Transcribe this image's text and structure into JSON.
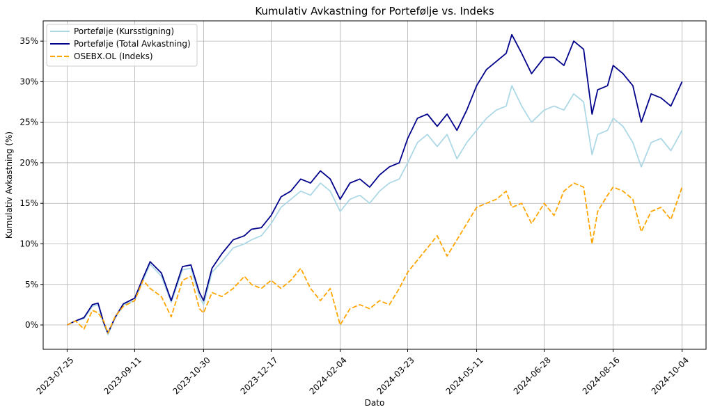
{
  "chart_data": {
    "type": "line",
    "title": "Kumulativ Avkastning for Portefølje vs. Indeks",
    "xlabel": "Dato",
    "ylabel": "Kumulativ Avkastning (%)",
    "ylim": [
      -3,
      37.5
    ],
    "xlim": [
      "2023-07-08",
      "2024-10-21"
    ],
    "x_ticks": [
      "2023-07-25",
      "2023-09-11",
      "2023-10-30",
      "2023-12-17",
      "2024-02-04",
      "2024-03-23",
      "2024-05-11",
      "2024-06-28",
      "2024-08-16",
      "2024-10-04"
    ],
    "y_ticks": [
      0,
      5,
      10,
      15,
      20,
      25,
      30,
      35
    ],
    "y_tick_labels": [
      "0%",
      "5%",
      "10%",
      "15%",
      "20%",
      "25%",
      "30%",
      "35%"
    ],
    "grid": true,
    "legend_position": "top-left",
    "series": [
      {
        "name": "Portefølje (Kursstigning)",
        "color": "#add8e6",
        "style": "solid",
        "points": [
          [
            "2023-07-25",
            0
          ],
          [
            "2023-07-31",
            0.5
          ],
          [
            "2023-08-06",
            0.8
          ],
          [
            "2023-08-12",
            2.3
          ],
          [
            "2023-08-16",
            2.5
          ],
          [
            "2023-08-20",
            0.2
          ],
          [
            "2023-08-23",
            -1.2
          ],
          [
            "2023-08-28",
            0.8
          ],
          [
            "2023-09-03",
            2.5
          ],
          [
            "2023-09-11",
            3.0
          ],
          [
            "2023-09-17",
            5.5
          ],
          [
            "2023-09-22",
            7.5
          ],
          [
            "2023-09-30",
            6.0
          ],
          [
            "2023-10-07",
            2.8
          ],
          [
            "2023-10-15",
            6.8
          ],
          [
            "2023-10-21",
            7.0
          ],
          [
            "2023-10-27",
            3.5
          ],
          [
            "2023-10-30",
            2.5
          ],
          [
            "2023-11-05",
            6.5
          ],
          [
            "2023-11-12",
            7.8
          ],
          [
            "2023-11-20",
            9.5
          ],
          [
            "2023-11-28",
            10.0
          ],
          [
            "2023-12-03",
            10.5
          ],
          [
            "2023-12-10",
            11.0
          ],
          [
            "2023-12-17",
            12.5
          ],
          [
            "2023-12-24",
            14.5
          ],
          [
            "2023-12-31",
            15.5
          ],
          [
            "2024-01-07",
            16.5
          ],
          [
            "2024-01-14",
            16.0
          ],
          [
            "2024-01-21",
            17.5
          ],
          [
            "2024-01-28",
            16.5
          ],
          [
            "2024-02-04",
            14.0
          ],
          [
            "2024-02-11",
            15.5
          ],
          [
            "2024-02-18",
            16.0
          ],
          [
            "2024-02-25",
            15.0
          ],
          [
            "2024-03-03",
            16.5
          ],
          [
            "2024-03-10",
            17.5
          ],
          [
            "2024-03-17",
            18.0
          ],
          [
            "2024-03-23",
            20.0
          ],
          [
            "2024-03-30",
            22.5
          ],
          [
            "2024-04-06",
            23.5
          ],
          [
            "2024-04-13",
            22.0
          ],
          [
            "2024-04-20",
            23.5
          ],
          [
            "2024-04-27",
            20.5
          ],
          [
            "2024-05-04",
            22.5
          ],
          [
            "2024-05-11",
            24.0
          ],
          [
            "2024-05-18",
            25.5
          ],
          [
            "2024-05-25",
            26.5
          ],
          [
            "2024-06-01",
            27.0
          ],
          [
            "2024-06-05",
            29.5
          ],
          [
            "2024-06-12",
            27.0
          ],
          [
            "2024-06-19",
            25.0
          ],
          [
            "2024-06-28",
            26.5
          ],
          [
            "2024-07-05",
            27.0
          ],
          [
            "2024-07-12",
            26.5
          ],
          [
            "2024-07-19",
            28.5
          ],
          [
            "2024-07-26",
            27.5
          ],
          [
            "2024-08-01",
            21.0
          ],
          [
            "2024-08-05",
            23.5
          ],
          [
            "2024-08-12",
            24.0
          ],
          [
            "2024-08-16",
            25.5
          ],
          [
            "2024-08-23",
            24.5
          ],
          [
            "2024-08-30",
            22.5
          ],
          [
            "2024-09-05",
            19.5
          ],
          [
            "2024-09-12",
            22.5
          ],
          [
            "2024-09-19",
            23.0
          ],
          [
            "2024-09-26",
            21.5
          ],
          [
            "2024-10-04",
            24.0
          ]
        ]
      },
      {
        "name": "Portefølje (Total Avkastning)",
        "color": "#00008b",
        "style": "solid",
        "points": [
          [
            "2023-07-25",
            0
          ],
          [
            "2023-07-31",
            0.5
          ],
          [
            "2023-08-06",
            0.9
          ],
          [
            "2023-08-12",
            2.5
          ],
          [
            "2023-08-16",
            2.7
          ],
          [
            "2023-08-20",
            0.3
          ],
          [
            "2023-08-23",
            -1.0
          ],
          [
            "2023-08-28",
            0.9
          ],
          [
            "2023-09-03",
            2.6
          ],
          [
            "2023-09-11",
            3.3
          ],
          [
            "2023-09-17",
            5.8
          ],
          [
            "2023-09-22",
            7.8
          ],
          [
            "2023-09-30",
            6.4
          ],
          [
            "2023-10-07",
            3.0
          ],
          [
            "2023-10-15",
            7.2
          ],
          [
            "2023-10-21",
            7.4
          ],
          [
            "2023-10-27",
            4.0
          ],
          [
            "2023-10-30",
            3.0
          ],
          [
            "2023-11-05",
            7.0
          ],
          [
            "2023-11-12",
            8.8
          ],
          [
            "2023-11-20",
            10.5
          ],
          [
            "2023-11-28",
            11.0
          ],
          [
            "2023-12-03",
            11.8
          ],
          [
            "2023-12-10",
            12.0
          ],
          [
            "2023-12-17",
            13.5
          ],
          [
            "2023-12-24",
            15.8
          ],
          [
            "2023-12-31",
            16.5
          ],
          [
            "2024-01-07",
            18.0
          ],
          [
            "2024-01-14",
            17.5
          ],
          [
            "2024-01-21",
            19.0
          ],
          [
            "2024-01-28",
            18.0
          ],
          [
            "2024-02-04",
            15.5
          ],
          [
            "2024-02-11",
            17.5
          ],
          [
            "2024-02-18",
            18.0
          ],
          [
            "2024-02-25",
            17.0
          ],
          [
            "2024-03-03",
            18.5
          ],
          [
            "2024-03-10",
            19.5
          ],
          [
            "2024-03-17",
            20.0
          ],
          [
            "2024-03-23",
            23.0
          ],
          [
            "2024-03-30",
            25.5
          ],
          [
            "2024-04-06",
            26.0
          ],
          [
            "2024-04-13",
            24.5
          ],
          [
            "2024-04-20",
            26.0
          ],
          [
            "2024-04-27",
            24.0
          ],
          [
            "2024-05-04",
            26.5
          ],
          [
            "2024-05-11",
            29.5
          ],
          [
            "2024-05-18",
            31.5
          ],
          [
            "2024-05-25",
            32.5
          ],
          [
            "2024-06-01",
            33.5
          ],
          [
            "2024-06-05",
            35.8
          ],
          [
            "2024-06-12",
            33.5
          ],
          [
            "2024-06-19",
            31.0
          ],
          [
            "2024-06-28",
            33.0
          ],
          [
            "2024-07-05",
            33.0
          ],
          [
            "2024-07-12",
            32.0
          ],
          [
            "2024-07-19",
            35.0
          ],
          [
            "2024-07-26",
            34.0
          ],
          [
            "2024-08-01",
            26.0
          ],
          [
            "2024-08-05",
            29.0
          ],
          [
            "2024-08-12",
            29.5
          ],
          [
            "2024-08-16",
            32.0
          ],
          [
            "2024-08-23",
            31.0
          ],
          [
            "2024-08-30",
            29.5
          ],
          [
            "2024-09-05",
            25.0
          ],
          [
            "2024-09-12",
            28.5
          ],
          [
            "2024-09-19",
            28.0
          ],
          [
            "2024-09-26",
            27.0
          ],
          [
            "2024-10-04",
            30.0
          ]
        ]
      },
      {
        "name": "OSEBX.OL (Indeks)",
        "color": "#ffa500",
        "style": "dashed",
        "points": [
          [
            "2023-07-25",
            0
          ],
          [
            "2023-07-31",
            0.5
          ],
          [
            "2023-08-06",
            -0.5
          ],
          [
            "2023-08-12",
            1.8
          ],
          [
            "2023-08-16",
            1.5
          ],
          [
            "2023-08-20",
            0.5
          ],
          [
            "2023-08-23",
            -1.0
          ],
          [
            "2023-08-28",
            1.0
          ],
          [
            "2023-09-03",
            2.3
          ],
          [
            "2023-09-11",
            3.0
          ],
          [
            "2023-09-17",
            5.5
          ],
          [
            "2023-09-22",
            4.5
          ],
          [
            "2023-09-30",
            3.5
          ],
          [
            "2023-10-07",
            1.0
          ],
          [
            "2023-10-15",
            5.5
          ],
          [
            "2023-10-21",
            6.0
          ],
          [
            "2023-10-27",
            2.0
          ],
          [
            "2023-10-30",
            1.5
          ],
          [
            "2023-11-05",
            4.0
          ],
          [
            "2023-11-12",
            3.5
          ],
          [
            "2023-11-20",
            4.5
          ],
          [
            "2023-11-28",
            6.0
          ],
          [
            "2023-12-03",
            5.0
          ],
          [
            "2023-12-10",
            4.5
          ],
          [
            "2023-12-17",
            5.5
          ],
          [
            "2023-12-24",
            4.5
          ],
          [
            "2023-12-31",
            5.5
          ],
          [
            "2024-01-07",
            7.0
          ],
          [
            "2024-01-14",
            4.5
          ],
          [
            "2024-01-21",
            3.0
          ],
          [
            "2024-01-28",
            4.5
          ],
          [
            "2024-02-04",
            0.0
          ],
          [
            "2024-02-11",
            2.0
          ],
          [
            "2024-02-18",
            2.5
          ],
          [
            "2024-02-25",
            2.0
          ],
          [
            "2024-03-03",
            3.0
          ],
          [
            "2024-03-10",
            2.5
          ],
          [
            "2024-03-17",
            4.5
          ],
          [
            "2024-03-23",
            6.5
          ],
          [
            "2024-03-30",
            8.0
          ],
          [
            "2024-04-06",
            9.5
          ],
          [
            "2024-04-13",
            11.0
          ],
          [
            "2024-04-20",
            8.5
          ],
          [
            "2024-04-27",
            10.5
          ],
          [
            "2024-05-04",
            12.5
          ],
          [
            "2024-05-11",
            14.5
          ],
          [
            "2024-05-18",
            15.0
          ],
          [
            "2024-05-25",
            15.5
          ],
          [
            "2024-06-01",
            16.5
          ],
          [
            "2024-06-05",
            14.5
          ],
          [
            "2024-06-12",
            15.0
          ],
          [
            "2024-06-19",
            12.5
          ],
          [
            "2024-06-28",
            15.0
          ],
          [
            "2024-07-05",
            13.5
          ],
          [
            "2024-07-12",
            16.5
          ],
          [
            "2024-07-19",
            17.5
          ],
          [
            "2024-07-26",
            17.0
          ],
          [
            "2024-08-01",
            10.0
          ],
          [
            "2024-08-05",
            14.0
          ],
          [
            "2024-08-12",
            16.0
          ],
          [
            "2024-08-16",
            17.0
          ],
          [
            "2024-08-23",
            16.5
          ],
          [
            "2024-08-30",
            15.5
          ],
          [
            "2024-09-05",
            11.5
          ],
          [
            "2024-09-12",
            14.0
          ],
          [
            "2024-09-19",
            14.5
          ],
          [
            "2024-09-26",
            13.0
          ],
          [
            "2024-10-04",
            17.0
          ]
        ]
      }
    ]
  }
}
